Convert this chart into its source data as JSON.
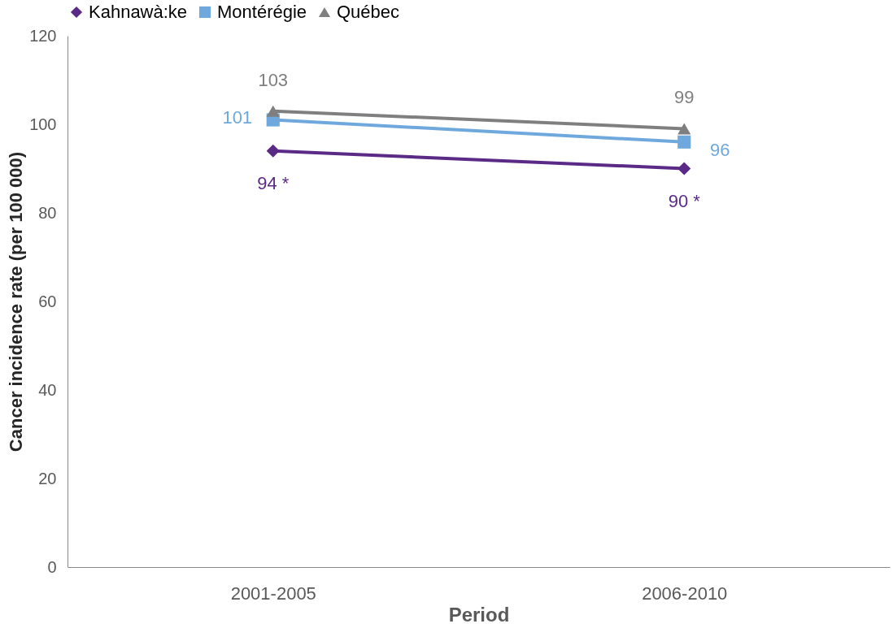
{
  "chart_data": {
    "type": "line",
    "xlabel": "Period",
    "ylabel": "Cancer incidence rate (per 100 000)",
    "categories": [
      "2001-2005",
      "2006-2010"
    ],
    "series": [
      {
        "name": "Kahnawà:ke",
        "color": "#5b2a86",
        "marker": "diamond",
        "values": [
          94,
          90
        ],
        "value_labels": [
          "94 *",
          "90 *"
        ]
      },
      {
        "name": "Montérégie",
        "color": "#6fa8dc",
        "marker": "square",
        "values": [
          101,
          96
        ],
        "value_labels": [
          "101",
          "96"
        ]
      },
      {
        "name": "Québec",
        "color": "#7f7f7f",
        "marker": "triangle",
        "values": [
          103,
          99
        ],
        "value_labels": [
          "103",
          "99"
        ]
      }
    ],
    "ylim": [
      0,
      120
    ],
    "yticks": [
      0,
      20,
      40,
      60,
      80,
      100,
      120
    ],
    "grid": false,
    "legend": "top"
  }
}
